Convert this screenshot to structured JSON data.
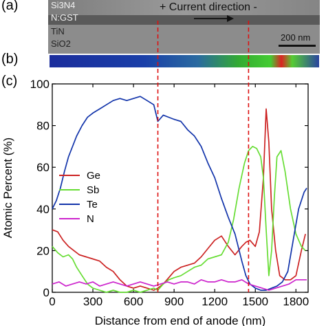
{
  "panels": {
    "a": {
      "letter": "(a)",
      "layers": [
        "Si3N4",
        "N:GST",
        "TiN",
        "SiO2"
      ],
      "current_text": "+ Current direction -",
      "scale_bar": "200 nm"
    },
    "b": {
      "letter": "(b)"
    },
    "c": {
      "letter": "(c)"
    }
  },
  "chart_data": {
    "type": "line",
    "xlabel": "Distance from end of anode (nm)",
    "ylabel": "Atomic Percent (%)",
    "xlim": [
      0,
      1890
    ],
    "ylim": [
      0,
      100
    ],
    "xticks": [
      0,
      300,
      600,
      900,
      1200,
      1500,
      1800
    ],
    "yticks": [
      0,
      20,
      40,
      60,
      80,
      100
    ],
    "legend_position": "left",
    "markers_nm": [
      780,
      1450
    ],
    "series": [
      {
        "name": "Ge",
        "color": "#cc2222",
        "x": [
          0,
          40,
          80,
          120,
          160,
          200,
          250,
          300,
          350,
          400,
          450,
          500,
          550,
          600,
          650,
          700,
          750,
          780,
          820,
          860,
          900,
          950,
          1000,
          1050,
          1100,
          1150,
          1200,
          1250,
          1300,
          1350,
          1400,
          1430,
          1460,
          1500,
          1530,
          1560,
          1580,
          1600,
          1620,
          1650,
          1680,
          1720,
          1760,
          1800,
          1840,
          1870
        ],
        "values": [
          30,
          29,
          25,
          22,
          20,
          18,
          17,
          16,
          15,
          12,
          10,
          6,
          3,
          2,
          3,
          2,
          1,
          2,
          4,
          7,
          10,
          12,
          13,
          14,
          17,
          21,
          25,
          27,
          22,
          18,
          22,
          24,
          25,
          22,
          29,
          55,
          88,
          72,
          40,
          20,
          8,
          6,
          6,
          8,
          20,
          28
        ]
      },
      {
        "name": "Sb",
        "color": "#66dd33",
        "x": [
          0,
          40,
          80,
          120,
          150,
          180,
          220,
          260,
          300,
          350,
          400,
          450,
          500,
          550,
          600,
          650,
          700,
          750,
          780,
          820,
          860,
          900,
          950,
          1000,
          1050,
          1100,
          1150,
          1200,
          1250,
          1300,
          1340,
          1380,
          1420,
          1450,
          1480,
          1510,
          1540,
          1560,
          1580,
          1600,
          1620,
          1640,
          1660,
          1690,
          1720,
          1760,
          1800,
          1840,
          1870
        ],
        "values": [
          22,
          19,
          17,
          18,
          16,
          12,
          8,
          4,
          2,
          1,
          0,
          1,
          0,
          0,
          1,
          0,
          1,
          2,
          1,
          4,
          6,
          7,
          8,
          10,
          12,
          13,
          16,
          17,
          18,
          24,
          35,
          50,
          62,
          68,
          70,
          69,
          65,
          55,
          30,
          8,
          20,
          45,
          65,
          68,
          58,
          40,
          28,
          22,
          20
        ]
      },
      {
        "name": "Te",
        "color": "#1133aa",
        "x": [
          0,
          30,
          60,
          90,
          120,
          150,
          180,
          220,
          260,
          300,
          350,
          400,
          450,
          500,
          550,
          600,
          650,
          700,
          750,
          780,
          820,
          860,
          900,
          950,
          1000,
          1050,
          1100,
          1150,
          1200,
          1250,
          1300,
          1350,
          1400,
          1430,
          1460,
          1500,
          1540,
          1580,
          1620,
          1660,
          1700,
          1740,
          1780,
          1820,
          1860,
          1880
        ],
        "values": [
          40,
          44,
          50,
          58,
          65,
          70,
          75,
          80,
          84,
          86,
          88,
          90,
          92,
          93,
          92,
          93,
          94,
          92,
          90,
          82,
          85,
          84,
          83,
          82,
          78,
          75,
          70,
          62,
          55,
          45,
          36,
          28,
          15,
          8,
          4,
          2,
          1,
          1,
          2,
          3,
          5,
          10,
          25,
          40,
          48,
          50
        ]
      },
      {
        "name": "N",
        "color": "#cc22cc",
        "x": [
          0,
          50,
          100,
          150,
          200,
          250,
          300,
          350,
          400,
          450,
          500,
          550,
          600,
          650,
          700,
          750,
          800,
          850,
          900,
          950,
          1000,
          1050,
          1100,
          1150,
          1200,
          1250,
          1300,
          1350,
          1400,
          1450,
          1500,
          1550,
          1600,
          1650,
          1700,
          1750,
          1800,
          1850,
          1880
        ],
        "values": [
          4,
          5,
          3,
          4,
          5,
          4,
          5,
          3,
          4,
          5,
          4,
          3,
          4,
          5,
          4,
          3,
          4,
          5,
          4,
          5,
          5,
          4,
          6,
          5,
          5,
          6,
          5,
          5,
          6,
          4,
          3,
          2,
          1,
          2,
          3,
          4,
          6,
          6,
          6
        ]
      }
    ]
  }
}
